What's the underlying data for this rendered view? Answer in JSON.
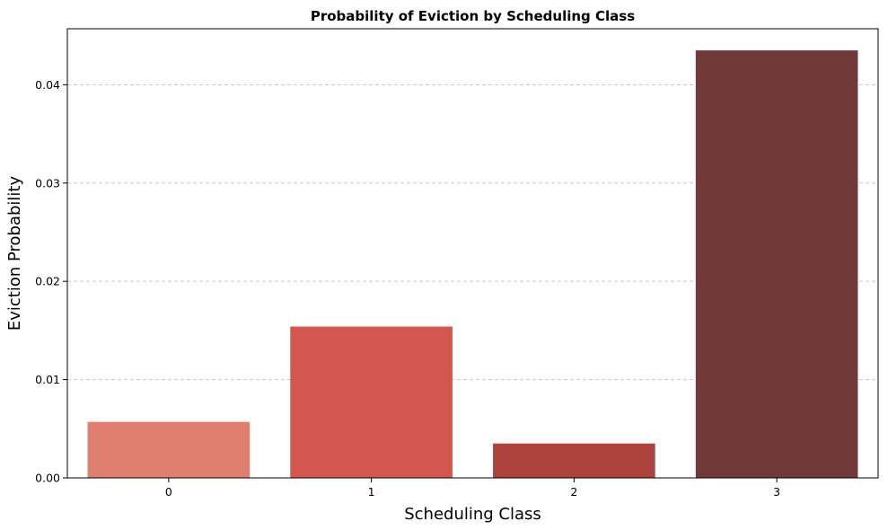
{
  "chart_data": {
    "type": "bar",
    "title": "Probability of Eviction by Scheduling Class",
    "xlabel": "Scheduling Class",
    "ylabel": "Eviction Probability",
    "categories": [
      "0",
      "1",
      "2",
      "3"
    ],
    "values": [
      0.0057,
      0.0154,
      0.0035,
      0.0435
    ],
    "colors": [
      "#e07f6f",
      "#d3574e",
      "#ac433c",
      "#6f3a38"
    ],
    "ylim": [
      0,
      0.0457
    ],
    "yticks": [
      0.0,
      0.01,
      0.02,
      0.03,
      0.04
    ],
    "ytick_labels": [
      "0.00",
      "0.01",
      "0.02",
      "0.03",
      "0.04"
    ],
    "grid": "y, dashed",
    "legend": "none"
  }
}
